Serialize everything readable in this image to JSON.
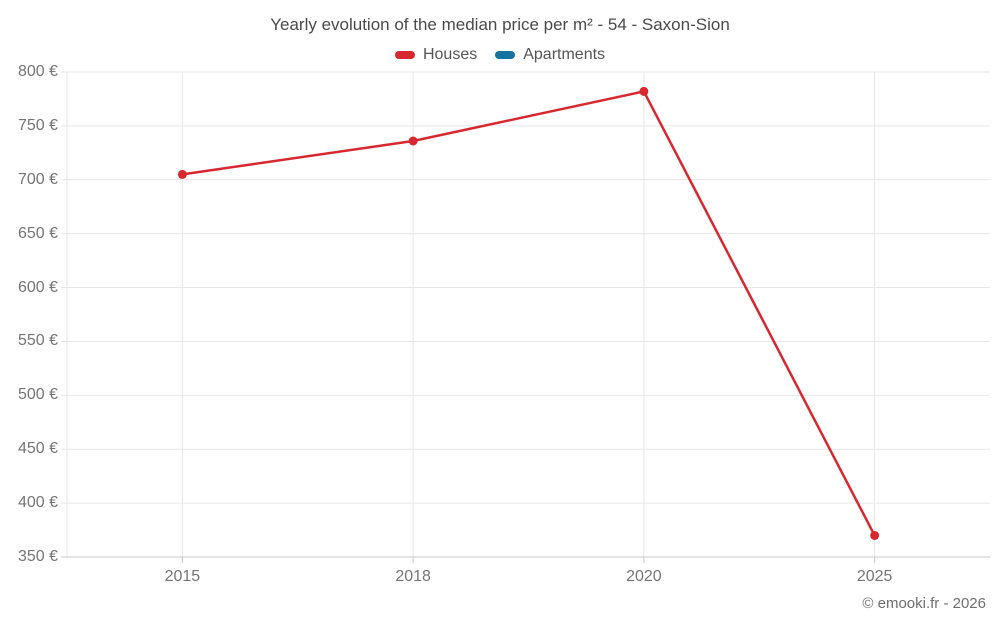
{
  "chart": {
    "title": "Yearly evolution of the median price per m² - 54 - Saxon-Sion"
  },
  "chart_data": {
    "type": "line",
    "title": "Yearly evolution of the median price per m² - 54 - Saxon-Sion",
    "categories": [
      "2015",
      "2018",
      "2020",
      "2025"
    ],
    "series": [
      {
        "name": "Houses",
        "color": "#d7282f",
        "values": [
          705,
          736,
          782,
          370
        ]
      },
      {
        "name": "Apartments",
        "color": "#17719f",
        "values": []
      }
    ],
    "ylim": [
      350,
      800
    ],
    "y_tick_step": 50,
    "y_tick_labels": [
      "350 €",
      "400 €",
      "450 €",
      "500 €",
      "550 €",
      "600 €",
      "650 €",
      "700 €",
      "750 €",
      "800 €"
    ],
    "unit": "€",
    "grid": true,
    "legend_position": "top"
  },
  "footer": {
    "copyright": "© emooki.fr - 2026"
  },
  "colors": {
    "grid": "#e7e7e7",
    "axis": "#c9c9c9",
    "tick_text": "#757575",
    "title_text": "#4a4a4a"
  }
}
